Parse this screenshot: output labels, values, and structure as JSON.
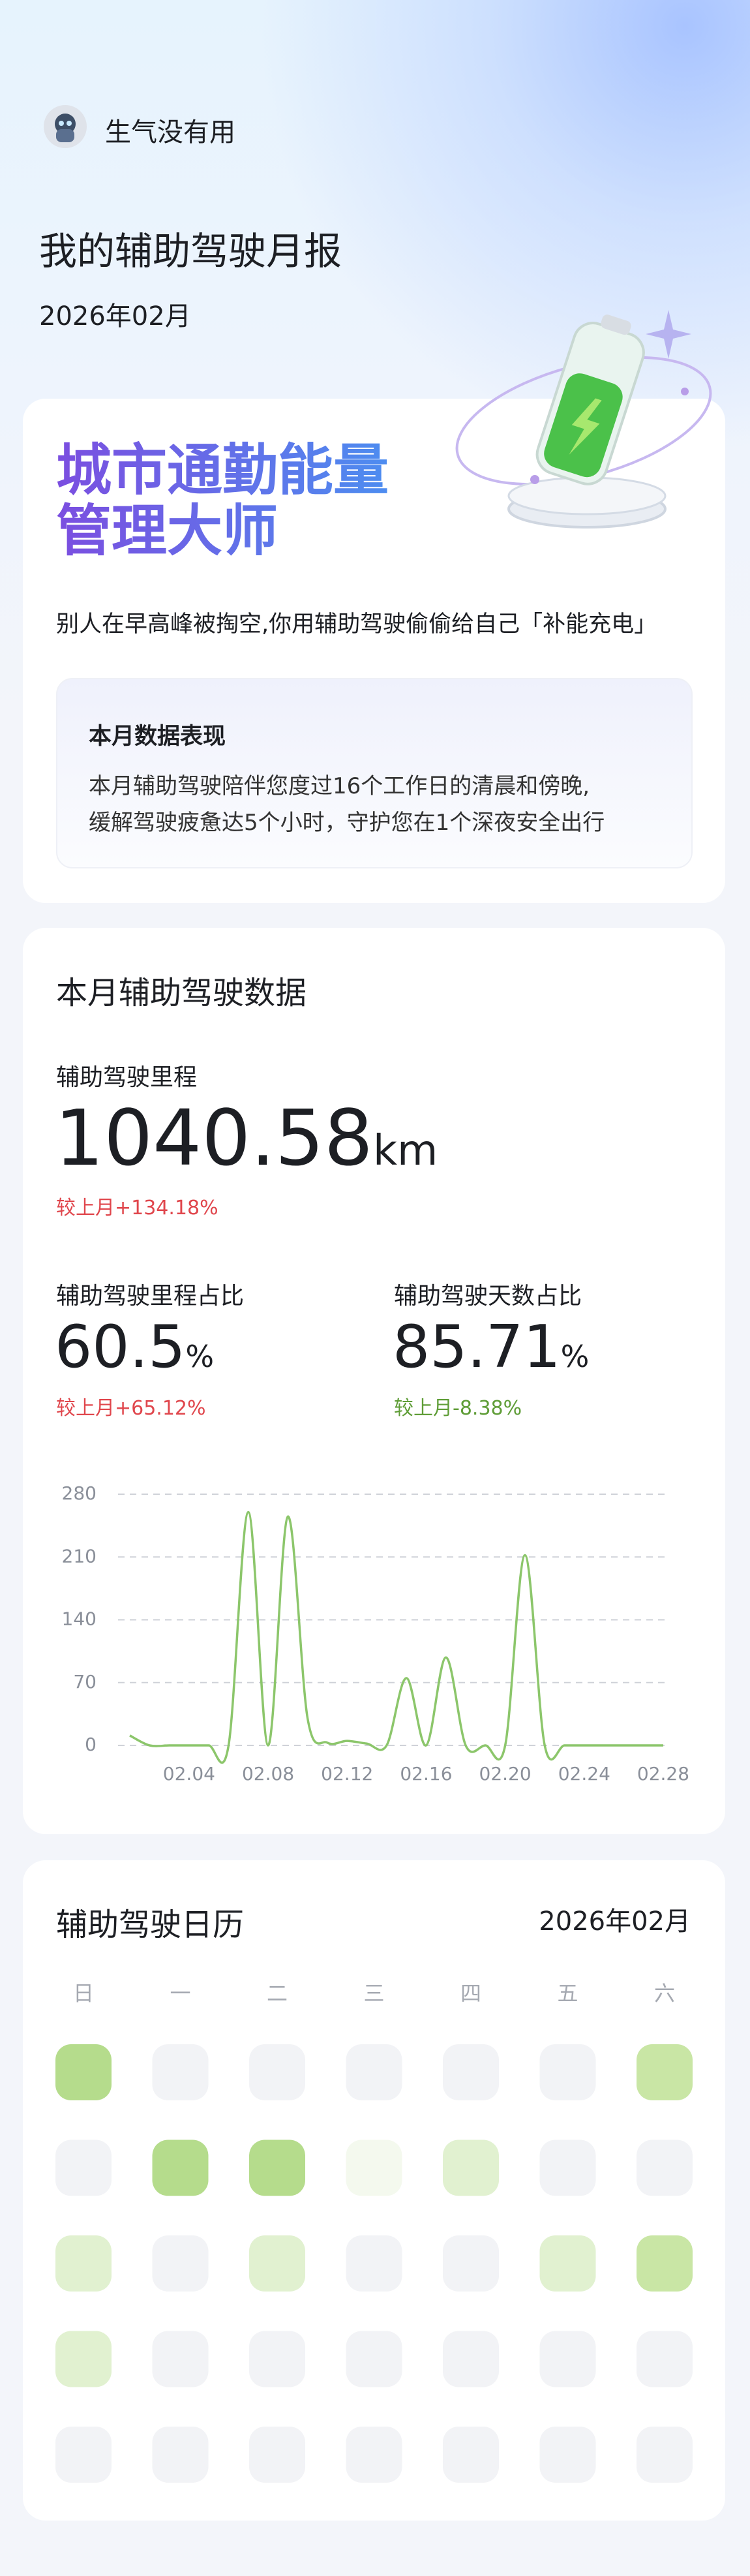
{
  "header": {
    "user": "生气没有用",
    "title": "我的辅助驾驶月报",
    "month": "2026年02月"
  },
  "summary_card": {
    "headline": [
      "城市通勤能量",
      "管理大师"
    ],
    "subtitle": "别人在早高峰被掏空,你用辅助驾驶偷偷给自己「补能充电」",
    "box_title": "本月数据表现",
    "box_lines": [
      "本月辅助驾驶陪伴您度过16个工作日的清晨和傍晚,",
      "缓解驾驶疲惫达5个小时，守护您在1个深夜安全出行"
    ]
  },
  "stats": {
    "title": "本月辅助驾驶数据",
    "mileage": {
      "label": "辅助驾驶里程",
      "value": "1040.58",
      "unit": "km",
      "change": "较上月+134.18%"
    },
    "mileage_share": {
      "label": "辅助驾驶里程占比",
      "value": "60.5",
      "unit": "%",
      "change": "较上月+65.12%"
    },
    "days_share": {
      "label": "辅助驾驶天数占比",
      "value": "85.71",
      "unit": "%",
      "change": "较上月-8.38%"
    }
  },
  "chart_data": {
    "type": "line",
    "categories": [
      null,
      null,
      null,
      "02.04",
      null,
      null,
      null,
      "02.08",
      null,
      null,
      null,
      "02.12",
      null,
      null,
      null,
      "02.16",
      null,
      null,
      null,
      "02.20",
      null,
      null,
      null,
      "02.24",
      null,
      null,
      null,
      "02.28"
    ],
    "series": [
      {
        "color": "#8cc66b",
        "values": [
          11,
          0,
          0,
          0,
          0,
          0,
          260,
          0,
          255,
          30,
          3,
          5,
          2,
          0,
          75,
          0,
          98,
          0,
          0,
          0,
          212,
          0,
          0,
          0,
          0,
          0,
          0,
          0
        ]
      }
    ],
    "ylim": [
      0,
      280
    ],
    "yticks": [
      0,
      70,
      140,
      210,
      280
    ],
    "grid": true
  },
  "calendar": {
    "title": "辅助驾驶日历",
    "month": "2026年02月",
    "weekdays": [
      "日",
      "一",
      "二",
      "三",
      "四",
      "五",
      "六"
    ],
    "palette": [
      "#f2f3f6",
      "#f4f9ee",
      "#e1f1d0",
      "#c9e6a5",
      "#b5dc8c"
    ],
    "levels": [
      [
        4,
        0,
        0,
        0,
        0,
        0,
        3
      ],
      [
        0,
        4,
        4,
        1,
        2,
        0,
        0
      ],
      [
        2,
        0,
        2,
        0,
        0,
        2,
        3
      ],
      [
        2,
        0,
        0,
        0,
        0,
        0,
        0
      ],
      [
        0,
        0,
        0,
        0,
        0,
        0,
        0
      ]
    ]
  }
}
